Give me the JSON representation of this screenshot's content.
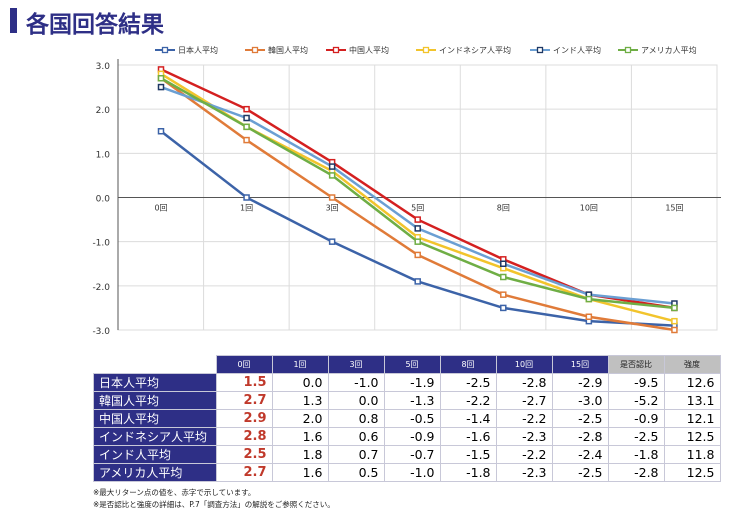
{
  "title": "各国回答結果",
  "chart_data": {
    "type": "line",
    "categories": [
      "0回",
      "1回",
      "3回",
      "5回",
      "8回",
      "10回",
      "15回"
    ],
    "ylim": [
      -3.0,
      3.0
    ],
    "yticks": [
      "3.0",
      "2.0",
      "1.0",
      "0.0",
      "-1.0",
      "-2.0",
      "-3.0"
    ],
    "grid": true,
    "legend": "top",
    "series": [
      {
        "name": "日本人平均",
        "color": "#3c63a8",
        "marker": "#3c63a8",
        "values": [
          1.5,
          0.0,
          -1.0,
          -1.9,
          -2.5,
          -2.8,
          -2.9
        ]
      },
      {
        "name": "韓国人平均",
        "color": "#e07b39",
        "marker": "#e07b39",
        "values": [
          2.7,
          1.3,
          0.0,
          -1.3,
          -2.2,
          -2.7,
          -3.0
        ]
      },
      {
        "name": "中国人平均",
        "color": "#d42020",
        "marker": "#d42020",
        "values": [
          2.9,
          2.0,
          0.8,
          -0.5,
          -1.4,
          -2.2,
          -2.5
        ]
      },
      {
        "name": "インドネシア人平均",
        "color": "#f2c42c",
        "marker": "#f2c42c",
        "values": [
          2.8,
          1.6,
          0.6,
          -0.9,
          -1.6,
          -2.3,
          -2.8
        ]
      },
      {
        "name": "インド人平均",
        "color": "#6b9fd3",
        "marker": "#1f3864",
        "values": [
          2.5,
          1.8,
          0.7,
          -0.7,
          -1.5,
          -2.2,
          -2.4
        ]
      },
      {
        "name": "アメリカ人平均",
        "color": "#6fae45",
        "marker": "#6fae45",
        "values": [
          2.7,
          1.6,
          0.5,
          -1.0,
          -1.8,
          -2.3,
          -2.5
        ]
      }
    ]
  },
  "table": {
    "headers": [
      "0回",
      "1回",
      "3回",
      "5回",
      "8回",
      "10回",
      "15回",
      "是否認比",
      "強度"
    ],
    "rows": [
      {
        "label": "日本人平均",
        "cells": [
          "1.5",
          "0.0",
          "-1.0",
          "-1.9",
          "-2.5",
          "-2.8",
          "-2.9",
          "-9.5",
          "12.6"
        ]
      },
      {
        "label": "韓国人平均",
        "cells": [
          "2.7",
          "1.3",
          "0.0",
          "-1.3",
          "-2.2",
          "-2.7",
          "-3.0",
          "-5.2",
          "13.1"
        ]
      },
      {
        "label": "中国人平均",
        "cells": [
          "2.9",
          "2.0",
          "0.8",
          "-0.5",
          "-1.4",
          "-2.2",
          "-2.5",
          "-0.9",
          "12.1"
        ]
      },
      {
        "label": "インドネシア人平均",
        "cells": [
          "2.8",
          "1.6",
          "0.6",
          "-0.9",
          "-1.6",
          "-2.3",
          "-2.8",
          "-2.5",
          "12.5"
        ]
      },
      {
        "label": "インド人平均",
        "cells": [
          "2.5",
          "1.8",
          "0.7",
          "-0.7",
          "-1.5",
          "-2.2",
          "-2.4",
          "-1.8",
          "11.8"
        ]
      },
      {
        "label": "アメリカ人平均",
        "cells": [
          "2.7",
          "1.6",
          "0.5",
          "-1.0",
          "-1.8",
          "-2.3",
          "-2.5",
          "-2.8",
          "12.5"
        ]
      }
    ]
  },
  "notes": [
    "※最大リターン点の値を、赤字で示しています。",
    "※是否認比と強度の詳細は、P.7「調査方法」の解説をご参照ください。"
  ]
}
